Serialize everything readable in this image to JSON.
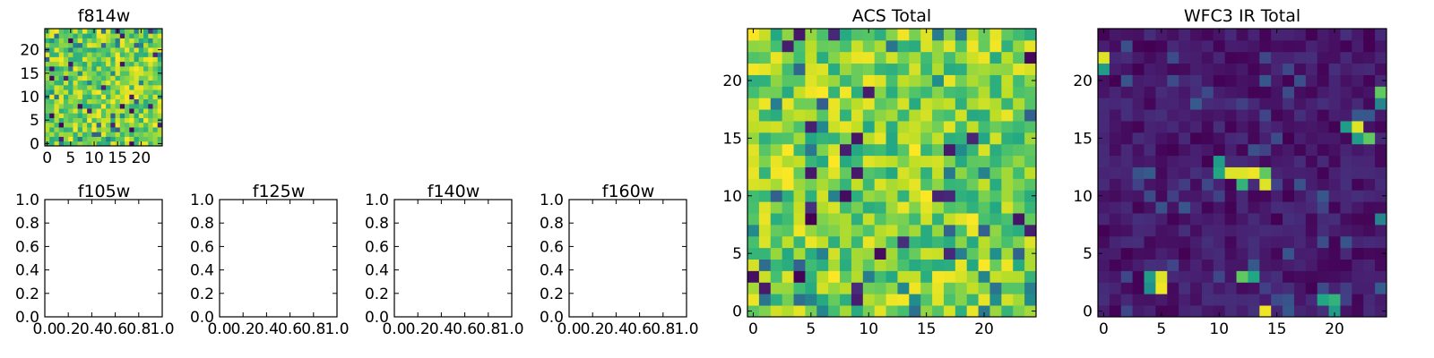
{
  "chart_data": [
    {
      "id": "f814w",
      "type": "heatmap",
      "title": "f814w",
      "colormap": "viridis",
      "grid_size": 25,
      "xlim": [
        -0.5,
        24.5
      ],
      "ylim": [
        -0.5,
        24.5
      ],
      "xticks": [
        "0",
        "5",
        "10",
        "15",
        "20"
      ],
      "yticks": [
        "0",
        "5",
        "10",
        "15",
        "20"
      ],
      "value_range": [
        0,
        1
      ],
      "seed": 11,
      "mode": "acs"
    },
    {
      "id": "f105w",
      "type": "heatmap",
      "title": "f105w",
      "empty": true,
      "xlim": [
        0,
        1
      ],
      "ylim": [
        0,
        1
      ],
      "xticks": [
        "0.0",
        "0.2",
        "0.4",
        "0.6",
        "0.8",
        "1.0"
      ],
      "yticks": [
        "0.0",
        "0.2",
        "0.4",
        "0.6",
        "0.8",
        "1.0"
      ]
    },
    {
      "id": "f125w",
      "type": "heatmap",
      "title": "f125w",
      "empty": true,
      "xlim": [
        0,
        1
      ],
      "ylim": [
        0,
        1
      ],
      "xticks": [
        "0.0",
        "0.2",
        "0.4",
        "0.6",
        "0.8",
        "1.0"
      ],
      "yticks": [
        "0.0",
        "0.2",
        "0.4",
        "0.6",
        "0.8",
        "1.0"
      ]
    },
    {
      "id": "f140w",
      "type": "heatmap",
      "title": "f140w",
      "empty": true,
      "xlim": [
        0,
        1
      ],
      "ylim": [
        0,
        1
      ],
      "xticks": [
        "0.0",
        "0.2",
        "0.4",
        "0.6",
        "0.8",
        "1.0"
      ],
      "yticks": [
        "0.0",
        "0.2",
        "0.4",
        "0.6",
        "0.8",
        "1.0"
      ]
    },
    {
      "id": "f160w",
      "type": "heatmap",
      "title": "f160w",
      "empty": true,
      "xlim": [
        0,
        1
      ],
      "ylim": [
        0,
        1
      ],
      "xticks": [
        "0.0",
        "0.2",
        "0.4",
        "0.6",
        "0.8",
        "1.0"
      ],
      "yticks": [
        "0.0",
        "0.2",
        "0.4",
        "0.6",
        "0.8",
        "1.0"
      ]
    },
    {
      "id": "acs-total",
      "type": "heatmap",
      "title": "ACS Total",
      "colormap": "viridis",
      "grid_size": 25,
      "xlim": [
        -0.5,
        24.5
      ],
      "ylim": [
        -0.5,
        24.5
      ],
      "xticks": [
        "0",
        "5",
        "10",
        "15",
        "20"
      ],
      "yticks": [
        "0",
        "5",
        "10",
        "15",
        "20"
      ],
      "value_range": [
        0,
        1
      ],
      "seed": 23,
      "mode": "acs"
    },
    {
      "id": "wfc3-ir-total",
      "type": "heatmap",
      "title": "WFC3 IR Total",
      "colormap": "viridis",
      "grid_size": 25,
      "xlim": [
        -0.5,
        24.5
      ],
      "ylim": [
        -0.5,
        24.5
      ],
      "xticks": [
        "0",
        "5",
        "10",
        "15",
        "20"
      ],
      "yticks": [
        "0",
        "5",
        "10",
        "15",
        "20"
      ],
      "value_range": [
        0,
        1
      ],
      "seed": 37,
      "mode": "ir",
      "bright_pixels": [
        {
          "x": 0,
          "y": 22,
          "v": 0.95
        },
        {
          "x": 0,
          "y": 21,
          "v": 0.55
        },
        {
          "x": 24,
          "y": 19,
          "v": 0.75
        },
        {
          "x": 24,
          "y": 18,
          "v": 0.45
        },
        {
          "x": 22,
          "y": 16,
          "v": 0.95
        },
        {
          "x": 21,
          "y": 16,
          "v": 0.55
        },
        {
          "x": 22,
          "y": 15,
          "v": 0.55
        },
        {
          "x": 23,
          "y": 15,
          "v": 0.75
        },
        {
          "x": 10,
          "y": 13,
          "v": 0.55
        },
        {
          "x": 10,
          "y": 12,
          "v": 0.6
        },
        {
          "x": 11,
          "y": 12,
          "v": 0.95
        },
        {
          "x": 12,
          "y": 12,
          "v": 0.95
        },
        {
          "x": 13,
          "y": 12,
          "v": 0.98
        },
        {
          "x": 14,
          "y": 12,
          "v": 0.75
        },
        {
          "x": 12,
          "y": 11,
          "v": 0.65
        },
        {
          "x": 14,
          "y": 11,
          "v": 0.95
        },
        {
          "x": 4,
          "y": 3,
          "v": 0.55
        },
        {
          "x": 5,
          "y": 3,
          "v": 0.95
        },
        {
          "x": 5,
          "y": 2,
          "v": 0.98
        },
        {
          "x": 4,
          "y": 2,
          "v": 0.5
        },
        {
          "x": 12,
          "y": 3,
          "v": 0.75
        },
        {
          "x": 13,
          "y": 3,
          "v": 0.6
        },
        {
          "x": 19,
          "y": 1,
          "v": 0.6
        },
        {
          "x": 20,
          "y": 1,
          "v": 0.65
        },
        {
          "x": 20,
          "y": 0,
          "v": 0.55
        },
        {
          "x": 14,
          "y": 0,
          "v": 0.98
        },
        {
          "x": 24,
          "y": 8,
          "v": 0.45
        }
      ]
    }
  ]
}
